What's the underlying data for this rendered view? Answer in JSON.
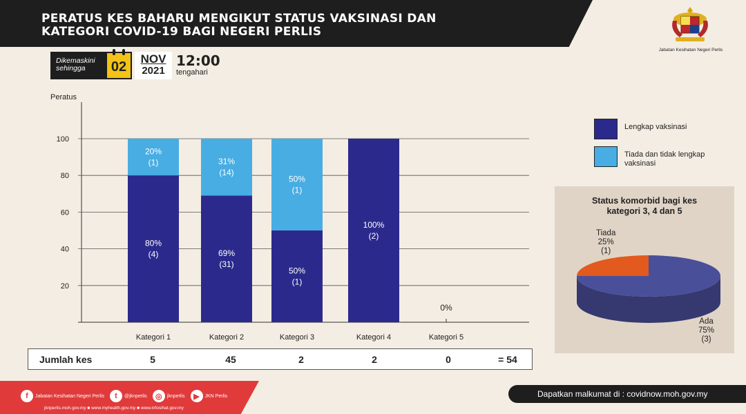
{
  "header": {
    "title_line1": "PERATUS KES BAHARU MENGIKUT STATUS VAKSINASI  DAN",
    "title_line2": "KATEGORI COVID-19 BAGI NEGERI PERLIS",
    "agency": "Jabatan Kesihatan Negeri Perlis"
  },
  "update": {
    "label_line1": "Dikemaskini",
    "label_line2": "sehingga",
    "day": "02",
    "month": "NOV",
    "year": "2021",
    "time": "12:00",
    "time_note": "tengahari"
  },
  "chart_data": [
    {
      "type": "bar",
      "stacked": true,
      "ylabel": "Peratus",
      "ylim": [
        0,
        100
      ],
      "yticks": [
        20,
        40,
        60,
        80,
        100
      ],
      "grid": true,
      "legend_position": "right",
      "categories": [
        "Kategori 1",
        "Kategori 2",
        "Kategori 3",
        "Kategori 4",
        "Kategori 5"
      ],
      "series": [
        {
          "name": "Lengkap vaksinasi",
          "color": "#2b2a8c",
          "values": [
            80,
            69,
            50,
            100,
            0
          ],
          "labels": [
            "80%",
            "69%",
            "50%",
            "100%",
            ""
          ],
          "counts": [
            "(4)",
            "(31)",
            "(1)",
            "(2)",
            ""
          ]
        },
        {
          "name": "Tiada dan tidak lengkap vaksinasi",
          "color": "#48ade3",
          "values": [
            20,
            31,
            50,
            0,
            0
          ],
          "labels": [
            "20%",
            "31%",
            "50%",
            "",
            ""
          ],
          "counts": [
            "(1)",
            "(14)",
            "(1)",
            "",
            ""
          ]
        }
      ],
      "annotations": [
        {
          "category": "Kategori 5",
          "text": "0%"
        }
      ]
    },
    {
      "type": "pie",
      "title_line1": "Status komorbid bagi kes",
      "title_line2": "kategori 3, 4 dan 5",
      "slices": [
        {
          "label": "Tiada",
          "percent_label": "25%",
          "count": "(1)",
          "value": 25,
          "color": "#e25a1e"
        },
        {
          "label": "Ada",
          "percent_label": "75%",
          "count": "(3)",
          "value": 75,
          "color": "#4a4f9a"
        }
      ]
    }
  ],
  "summary": {
    "label": "Jumlah kes",
    "values": [
      "5",
      "45",
      "2",
      "2",
      "0"
    ],
    "total": "= 54"
  },
  "footer": {
    "social": [
      {
        "icon": "facebook-icon",
        "glyph": "f",
        "text": "Jabatan Kesihatan Negeri Perlis"
      },
      {
        "icon": "twitter-icon",
        "glyph": "t",
        "text": "@jknperlis"
      },
      {
        "icon": "instagram-icon",
        "glyph": "◎",
        "text": "jknperlis"
      },
      {
        "icon": "youtube-icon",
        "glyph": "▶",
        "text": "JKN Perlis"
      }
    ],
    "websites": "jknperlis.moh.gov.my ■ www.myhealth.gov.my ■ www.infosihat.gov.my",
    "info": "Dapatkan malkumat di : covidnow.moh.gov.my"
  }
}
